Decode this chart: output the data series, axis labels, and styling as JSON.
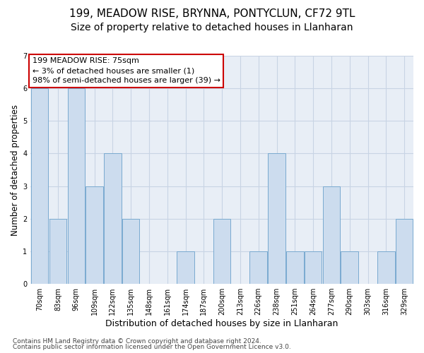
{
  "title1": "199, MEADOW RISE, BRYNNA, PONTYCLUN, CF72 9TL",
  "title2": "Size of property relative to detached houses in Llanharan",
  "xlabel": "Distribution of detached houses by size in Llanharan",
  "ylabel": "Number of detached properties",
  "footer1": "Contains HM Land Registry data © Crown copyright and database right 2024.",
  "footer2": "Contains public sector information licensed under the Open Government Licence v3.0.",
  "categories": [
    "70sqm",
    "83sqm",
    "96sqm",
    "109sqm",
    "122sqm",
    "135sqm",
    "148sqm",
    "161sqm",
    "174sqm",
    "187sqm",
    "200sqm",
    "213sqm",
    "226sqm",
    "238sqm",
    "251sqm",
    "264sqm",
    "277sqm",
    "290sqm",
    "303sqm",
    "316sqm",
    "329sqm"
  ],
  "values": [
    6,
    2,
    6,
    3,
    4,
    2,
    0,
    0,
    1,
    0,
    2,
    0,
    1,
    4,
    1,
    1,
    3,
    1,
    0,
    1,
    2
  ],
  "bar_color": "#ccdcee",
  "bar_edge_color": "#7aaad0",
  "annotation_text": "199 MEADOW RISE: 75sqm\n← 3% of detached houses are smaller (1)\n98% of semi-detached houses are larger (39) →",
  "ylim_max": 7,
  "yticks": [
    0,
    1,
    2,
    3,
    4,
    5,
    6,
    7
  ],
  "grid_color": "#c8d4e4",
  "bg_color": "#e8eef6",
  "ann_box_color": "#cc0000",
  "title1_fontsize": 11,
  "title2_fontsize": 10,
  "ann_fontsize": 8,
  "ylabel_fontsize": 8.5,
  "xlabel_fontsize": 9,
  "tick_fontsize": 7,
  "footer_fontsize": 6.5
}
